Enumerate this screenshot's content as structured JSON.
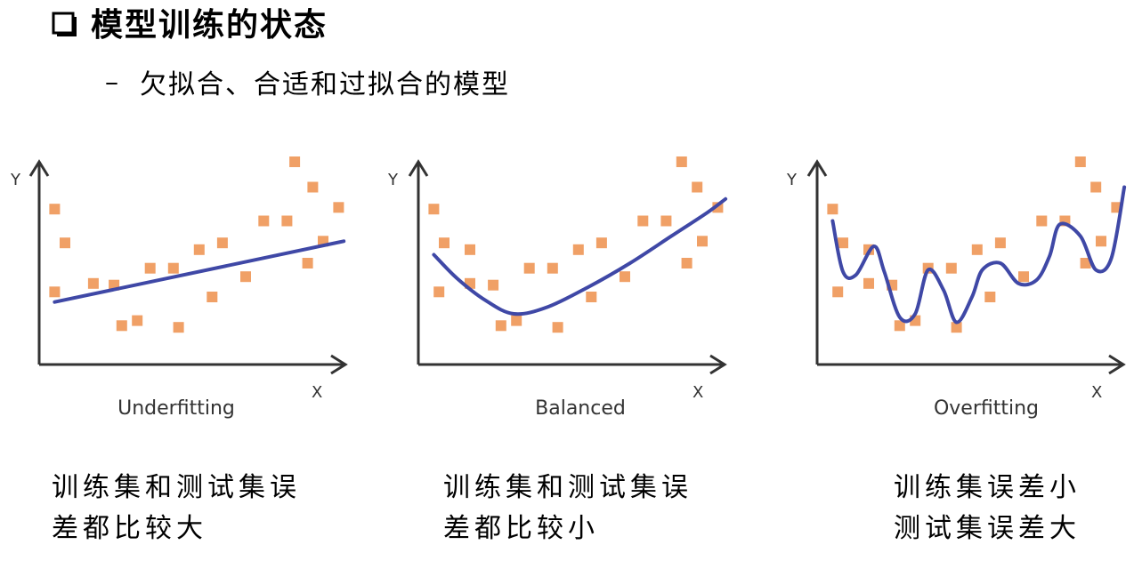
{
  "header": {
    "title": "模型训练的状态",
    "bullet_dash": "–",
    "subtitle": "欠拟合、合适和过拟合的模型"
  },
  "colors": {
    "point": "#F0A066",
    "curve": "#3F48A6",
    "axis": "#333333",
    "text": "#000000"
  },
  "icons": {
    "title_bullet": "empty-checkbox-icon"
  },
  "panels": [
    {
      "id": "underfitting",
      "y_axis_label": "Y",
      "x_axis_label": "X",
      "label": "Underfitting",
      "caption_lines": [
        "训练集和测试集误",
        "差都比较大"
      ],
      "points": [
        [
          0.6,
          9.2
        ],
        [
          1.0,
          7.2
        ],
        [
          0.6,
          4.3
        ],
        [
          2.1,
          4.8
        ],
        [
          2.9,
          4.7
        ],
        [
          3.2,
          2.3
        ],
        [
          3.8,
          2.6
        ],
        [
          4.3,
          5.7
        ],
        [
          5.2,
          5.7
        ],
        [
          5.4,
          2.2
        ],
        [
          6.2,
          6.8
        ],
        [
          6.7,
          4.0
        ],
        [
          7.1,
          7.2
        ],
        [
          8.0,
          5.2
        ],
        [
          8.7,
          8.5
        ],
        [
          9.6,
          8.5
        ],
        [
          10.4,
          6.0
        ],
        [
          9.9,
          12.0
        ],
        [
          10.6,
          10.5
        ],
        [
          11.6,
          9.3
        ],
        [
          11.0,
          7.3
        ]
      ],
      "curve": [
        [
          0.6,
          3.7
        ],
        [
          11.8,
          7.3
        ]
      ]
    },
    {
      "id": "balanced",
      "y_axis_label": "Y",
      "x_axis_label": "X",
      "label": "Balanced",
      "caption_lines": [
        "训练集和测试集误",
        "差都比较小"
      ],
      "points": [
        [
          0.6,
          9.2
        ],
        [
          1.0,
          7.2
        ],
        [
          0.8,
          4.3
        ],
        [
          2.0,
          6.8
        ],
        [
          2.0,
          4.8
        ],
        [
          2.9,
          4.7
        ],
        [
          3.2,
          2.3
        ],
        [
          3.8,
          2.6
        ],
        [
          4.3,
          5.7
        ],
        [
          5.2,
          5.7
        ],
        [
          5.4,
          2.2
        ],
        [
          6.2,
          6.8
        ],
        [
          6.7,
          4.0
        ],
        [
          7.1,
          7.2
        ],
        [
          8.0,
          5.2
        ],
        [
          8.7,
          8.5
        ],
        [
          9.6,
          8.5
        ],
        [
          10.4,
          6.0
        ],
        [
          10.2,
          12.0
        ],
        [
          10.8,
          10.5
        ],
        [
          11.6,
          9.3
        ],
        [
          11.0,
          7.3
        ]
      ],
      "curve": [
        [
          0.6,
          6.5
        ],
        [
          1.5,
          5.1
        ],
        [
          2.6,
          3.8
        ],
        [
          3.7,
          3.0
        ],
        [
          5.0,
          3.4
        ],
        [
          6.6,
          4.6
        ],
        [
          8.2,
          6.0
        ],
        [
          9.8,
          7.6
        ],
        [
          11.2,
          9.0
        ],
        [
          11.9,
          9.8
        ]
      ]
    },
    {
      "id": "overfitting",
      "y_axis_label": "Y",
      "x_axis_label": "X",
      "label": "Overfitting",
      "caption_lines": [
        "训练集误差小",
        "测试集误差大"
      ],
      "points": [
        [
          0.6,
          9.2
        ],
        [
          1.0,
          7.2
        ],
        [
          0.8,
          4.3
        ],
        [
          2.0,
          6.8
        ],
        [
          2.0,
          4.8
        ],
        [
          2.9,
          4.7
        ],
        [
          3.2,
          2.3
        ],
        [
          3.8,
          2.6
        ],
        [
          4.3,
          5.7
        ],
        [
          5.2,
          5.7
        ],
        [
          5.4,
          2.2
        ],
        [
          6.2,
          6.8
        ],
        [
          6.7,
          4.0
        ],
        [
          7.1,
          7.2
        ],
        [
          8.0,
          5.2
        ],
        [
          8.7,
          8.5
        ],
        [
          9.6,
          8.5
        ],
        [
          10.4,
          6.0
        ],
        [
          10.2,
          12.0
        ],
        [
          10.8,
          10.5
        ],
        [
          11.6,
          9.3
        ],
        [
          11.0,
          7.3
        ]
      ],
      "curve": [
        [
          0.6,
          8.5
        ],
        [
          1.0,
          5.5
        ],
        [
          1.5,
          5.3
        ],
        [
          2.2,
          7.0
        ],
        [
          2.6,
          5.5
        ],
        [
          3.2,
          2.8
        ],
        [
          3.8,
          3.0
        ],
        [
          4.3,
          5.6
        ],
        [
          4.9,
          4.4
        ],
        [
          5.4,
          2.5
        ],
        [
          6.0,
          4.0
        ],
        [
          6.4,
          5.6
        ],
        [
          7.1,
          6.0
        ],
        [
          7.8,
          4.8
        ],
        [
          8.5,
          5.0
        ],
        [
          9.0,
          6.4
        ],
        [
          9.4,
          8.3
        ],
        [
          10.2,
          7.6
        ],
        [
          10.8,
          5.6
        ],
        [
          11.4,
          6.3
        ],
        [
          11.9,
          10.5
        ]
      ]
    }
  ]
}
